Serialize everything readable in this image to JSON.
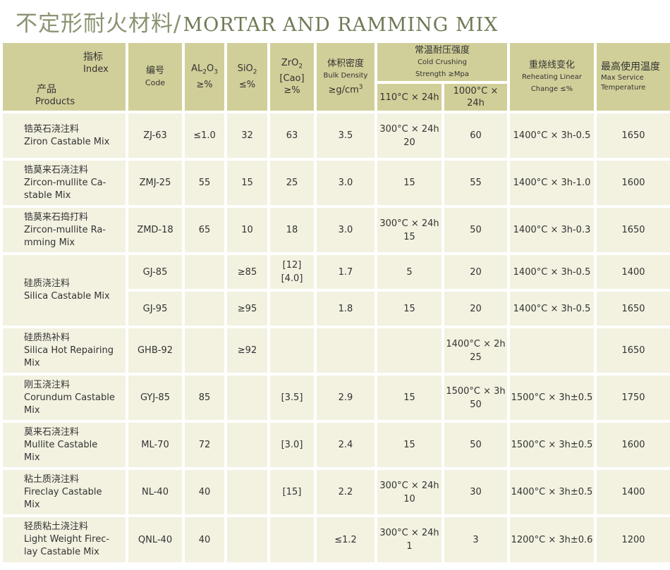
{
  "title": {
    "zh": "不定形耐火材料/",
    "en": "MORTAR AND RAMMING MIX"
  },
  "header": {
    "index_zh": "指标",
    "index_en": "Index",
    "product_zh": "产品",
    "product_en": "Products",
    "code_zh": "编号",
    "code_en": "Code",
    "al2o3_a": "AL",
    "al2o3_sub1": "2",
    "al2o3_b": "O",
    "al2o3_sub2": "3",
    "al2o3_unit": "≥%",
    "sio2_a": "SiO",
    "sio2_sub": "2",
    "sio2_unit": "≤%",
    "zro2_a": "ZrO",
    "zro2_sub": "2",
    "zro2_cao": "[Cao]",
    "zro2_unit": "≥%",
    "density_zh": "体积密度",
    "density_en": "Bulk Density",
    "density_unit_a": "≥g/cm",
    "density_unit_sup": "3",
    "strength_zh": "常温耐压强度",
    "strength_en": "Cold Crushing",
    "strength_unit": "Strength ≥Mpa",
    "temp110": "110°C × 24h",
    "temp1000": "1000°C × 24h",
    "reheat_zh": "重烧线变化",
    "reheat_en": "Reheating Linear",
    "reheat_unit": "Change ≤%",
    "max_zh": "最高使用温度",
    "max_en1": "Max Service",
    "max_en2": "Temperature"
  },
  "rows": [
    {
      "zh": "锆英石浇注料",
      "en": "Ziron Castable Mix",
      "code": "ZJ-63",
      "al": "≤1.0",
      "si": "32",
      "zr": "63",
      "dens": "3.5",
      "s110_a": "300°C × 24h",
      "s110_b": "20",
      "s1000": "60",
      "reheat": "1400°C × 3h-0.5",
      "max": "1650"
    },
    {
      "zh": "锆莫来石浇注料",
      "en": "Zircon-mullite Ca-",
      "en2": "stable Mix",
      "code": "ZMJ-25",
      "al": "55",
      "si": "15",
      "zr": "25",
      "dens": "3.0",
      "s110": "15",
      "s1000": "55",
      "reheat": "1400°C × 3h-1.0",
      "max": "1600"
    },
    {
      "zh": "锆莫来石捣打料",
      "en": "Zircon-mullite Ra-",
      "en2": "mming Mix",
      "code": "ZMD-18",
      "al": "65",
      "si": "10",
      "zr": "18",
      "dens": "3.0",
      "s110_a": "300°C × 24h",
      "s110_b": "15",
      "s1000": "50",
      "reheat": "1400°C × 3h-0.3",
      "max": "1650"
    },
    {
      "zh": "硅质浇注料",
      "en": "Silica Castable Mix",
      "code": "GJ-85",
      "al": "",
      "si": "≥85",
      "zr_a": "[12]",
      "zr_b": "[4.0]",
      "dens": "1.7",
      "s110": "5",
      "s1000": "20",
      "reheat": "1400°C × 3h-0.5",
      "max": "1400"
    },
    {
      "code": "GJ-95",
      "al": "",
      "si": "≥95",
      "zr": "",
      "dens": "1.8",
      "s110": "15",
      "s1000": "20",
      "reheat": "1400°C × 3h-0.5",
      "max": "1650"
    },
    {
      "zh": "硅质热补料",
      "en": "Silica Hot Repairing",
      "en2": "Mix",
      "code": "GHB-92",
      "al": "",
      "si": "≥92",
      "zr": "",
      "dens": "",
      "s110": "",
      "s1000_a": "1400°C × 2h",
      "s1000_b": "25",
      "reheat": "",
      "max": "1650"
    },
    {
      "zh": "刚玉浇注料",
      "en": "Corundum Castable",
      "en2": "Mix",
      "code": "GYJ-85",
      "al": "85",
      "si": "",
      "zr": "[3.5]",
      "dens": "2.9",
      "s110": "15",
      "s1000_a": "1500°C × 3h",
      "s1000_b": "50",
      "reheat": "1500°C × 3h±0.5",
      "max": "1750"
    },
    {
      "zh": "莫来石浇注料",
      "en": "Mullite Castable",
      "en2": "Mix",
      "code": "ML-70",
      "al": "72",
      "si": "",
      "zr": "[3.0]",
      "dens": "2.4",
      "s110": "15",
      "s1000": "50",
      "reheat": "1500°C × 3h±0.5",
      "max": "1600"
    },
    {
      "zh": "粘土质浇注料",
      "en": "Fireclay Castable",
      "en2": "Mix",
      "code": "NL-40",
      "al": "40",
      "si": "",
      "zr": "[15]",
      "dens": "2.2",
      "s110_a": "300°C × 24h",
      "s110_b": "10",
      "s1000": "30",
      "reheat": "1400°C × 3h±0.5",
      "max": "1400"
    },
    {
      "zh": "轻质粘土浇注料",
      "en": "Light Weight Firec-",
      "en2": "lay Castable Mix",
      "code": "QNL-40",
      "al": "40",
      "si": "",
      "zr": "",
      "dens": "≤1.2",
      "s110_a": "300°C × 24h",
      "s110_b": "1",
      "s1000": "3",
      "reheat": "1200°C × 3h±0.6",
      "max": "1200"
    }
  ]
}
